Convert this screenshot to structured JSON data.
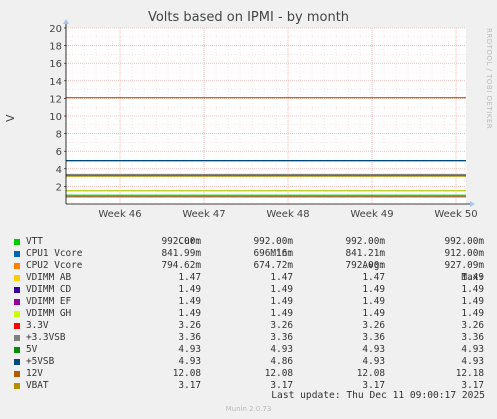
{
  "chart_data": {
    "type": "line",
    "title": "Volts based on IPMI - by month",
    "ylabel": "V",
    "xlabel": "",
    "ylim": [
      0,
      20
    ],
    "yticks": [
      2,
      4,
      6,
      8,
      10,
      12,
      14,
      16,
      18,
      20
    ],
    "x_tick_labels": [
      "Week 46",
      "Week 47",
      "Week 48",
      "Week 49",
      "Week 50"
    ],
    "grid": true,
    "legend_columns": [
      "Cur:",
      "Min:",
      "Avg:",
      "Max:"
    ],
    "series": [
      {
        "name": "VTT",
        "color": "#00cc00",
        "value": 0.992,
        "cur": "992.00m",
        "min": "992.00m",
        "avg": "992.00m",
        "max": "992.00m"
      },
      {
        "name": "CPU1 Vcore",
        "color": "#0066b3",
        "value": 0.842,
        "cur": "841.99m",
        "min": "696.16m",
        "avg": "841.21m",
        "max": "912.00m"
      },
      {
        "name": "CPU2 Vcore",
        "color": "#ff8000",
        "value": 0.795,
        "cur": "794.62m",
        "min": "674.72m",
        "avg": "792.00m",
        "max": "927.09m"
      },
      {
        "name": "VDIMM AB",
        "color": "#ffcc00",
        "value": 1.47,
        "cur": "1.47",
        "min": "1.47",
        "avg": "1.47",
        "max": "1.49"
      },
      {
        "name": "VDIMM CD",
        "color": "#330099",
        "value": 1.49,
        "cur": "1.49",
        "min": "1.49",
        "avg": "1.49",
        "max": "1.49"
      },
      {
        "name": "VDIMM EF",
        "color": "#990099",
        "value": 1.49,
        "cur": "1.49",
        "min": "1.49",
        "avg": "1.49",
        "max": "1.49"
      },
      {
        "name": "VDIMM GH",
        "color": "#ccff00",
        "value": 1.49,
        "cur": "1.49",
        "min": "1.49",
        "avg": "1.49",
        "max": "1.49"
      },
      {
        "name": "3.3V",
        "color": "#ff0000",
        "value": 3.26,
        "cur": "3.26",
        "min": "3.26",
        "avg": "3.26",
        "max": "3.26"
      },
      {
        "name": "+3.3VSB",
        "color": "#808080",
        "value": 3.36,
        "cur": "3.36",
        "min": "3.36",
        "avg": "3.36",
        "max": "3.36"
      },
      {
        "name": "5V",
        "color": "#008f00",
        "value": 4.93,
        "cur": "4.93",
        "min": "4.93",
        "avg": "4.93",
        "max": "4.93"
      },
      {
        "name": "+5VSB",
        "color": "#00487d",
        "value": 4.93,
        "cur": "4.93",
        "min": "4.86",
        "avg": "4.93",
        "max": "4.93"
      },
      {
        "name": "12V",
        "color": "#b35a00",
        "value": 12.08,
        "cur": "12.08",
        "min": "12.08",
        "avg": "12.08",
        "max": "12.18"
      },
      {
        "name": "VBAT",
        "color": "#b38f00",
        "value": 3.17,
        "cur": "3.17",
        "min": "3.17",
        "avg": "3.17",
        "max": "3.17"
      }
    ]
  },
  "footer": {
    "last_update": "Last update: Thu Dec 11 09:00:17 2025",
    "generator": "Munin 2.0.73",
    "side_credit": "RRDTOOL / TOBI OETIKER"
  }
}
